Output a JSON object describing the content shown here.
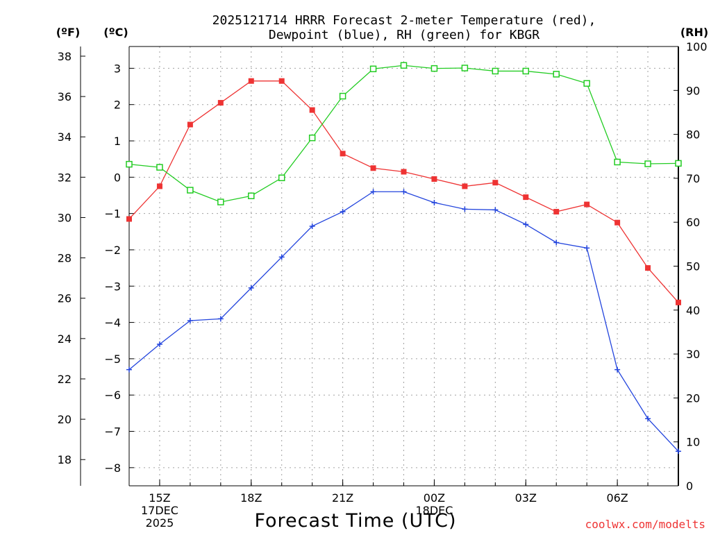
{
  "chart_data": {
    "type": "line",
    "title_line1": "2025121714 HRRR Forecast 2-meter Temperature (red),",
    "title_line2": "Dewpoint (blue), RH (green) for KBGR",
    "xlabel": "Forecast Time (UTC)",
    "credit": "coolwx.com/modelts",
    "unit_labels": {
      "fahrenheit": "(ºF)",
      "celsius": "(ºC)",
      "rh": "(RH)"
    },
    "colors": {
      "temperature": "#ee3333",
      "dewpoint": "#2244dd",
      "rh": "#22cc22"
    },
    "x_hours": [
      14,
      15,
      16,
      17,
      18,
      19,
      20,
      21,
      22,
      23,
      24,
      25,
      26,
      27,
      28,
      29,
      30,
      31,
      32
    ],
    "xlim": [
      14,
      32
    ],
    "x_ticks": [
      {
        "hour": 15,
        "lines": [
          "15Z",
          "17DEC",
          "2025"
        ]
      },
      {
        "hour": 18,
        "lines": [
          "18Z"
        ]
      },
      {
        "hour": 21,
        "lines": [
          "21Z"
        ]
      },
      {
        "hour": 24,
        "lines": [
          "00Z",
          "18DEC"
        ]
      },
      {
        "hour": 27,
        "lines": [
          "03Z"
        ]
      },
      {
        "hour": 30,
        "lines": [
          "06Z"
        ]
      }
    ],
    "ylim_celsius": [
      -8.5,
      3.6
    ],
    "yticks_celsius": [
      -8,
      -7,
      -6,
      -5,
      -4,
      -3,
      -2,
      -1,
      0,
      1,
      2,
      3
    ],
    "yticks_fahrenheit": [
      18,
      20,
      22,
      24,
      26,
      28,
      30,
      32,
      34,
      36,
      38
    ],
    "ylim_rh": [
      0,
      100
    ],
    "yticks_rh": [
      0,
      10,
      20,
      30,
      40,
      50,
      60,
      70,
      80,
      90,
      100
    ],
    "series": [
      {
        "name": "Temperature",
        "axis": "celsius",
        "marker": "filled-square",
        "values": [
          -1.15,
          -0.25,
          1.45,
          2.05,
          2.65,
          2.65,
          1.85,
          0.65,
          0.25,
          0.15,
          -0.05,
          -0.25,
          -0.15,
          -0.55,
          -0.95,
          -0.75,
          -1.25,
          -2.5,
          -3.45
        ]
      },
      {
        "name": "Dewpoint",
        "axis": "celsius",
        "marker": "plus",
        "values": [
          -5.3,
          -4.6,
          -3.95,
          -3.9,
          -3.05,
          -2.2,
          -1.35,
          -0.95,
          -0.4,
          -0.4,
          -0.7,
          -0.88,
          -0.9,
          -1.3,
          -1.8,
          -1.95,
          -5.3,
          -6.65,
          -7.55
        ]
      },
      {
        "name": "RH",
        "axis": "rh",
        "marker": "open-square",
        "values": [
          73.2,
          72.5,
          67.3,
          64.6,
          66.0,
          70.1,
          79.2,
          88.7,
          94.9,
          95.7,
          95.0,
          95.1,
          94.4,
          94.4,
          93.7,
          91.6,
          73.7,
          73.3,
          73.4
        ]
      }
    ]
  }
}
